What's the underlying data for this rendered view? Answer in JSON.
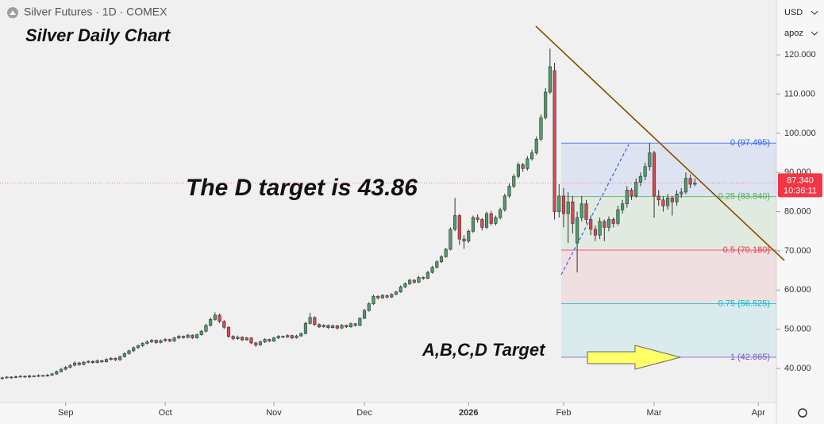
{
  "ui": {
    "symbol": "Silver Futures · 1D · COMEX",
    "currency": "USD",
    "scale_mode": "apoz"
  },
  "chart_data": {
    "type": "candlestick",
    "title": "Silver Daily Chart",
    "annotations": [
      "The D target is 43.86",
      "A,B,C,D  Target"
    ],
    "up_color": "#4f9d69",
    "down_color": "#e0454f",
    "wick_color": "#333333",
    "xlim": [
      -0.5,
      171
    ],
    "xticks": [
      {
        "value": 14,
        "label": "Sep"
      },
      {
        "value": 36,
        "label": "Oct"
      },
      {
        "value": 60,
        "label": "Nov"
      },
      {
        "value": 80,
        "label": "Dec"
      },
      {
        "value": 103,
        "label": "2026"
      },
      {
        "value": 124,
        "label": "Feb"
      },
      {
        "value": 144,
        "label": "Mar"
      },
      {
        "value": 167,
        "label": "Apr"
      }
    ],
    "ylim": [
      31.3,
      134
    ],
    "yticks": [
      {
        "value": 40,
        "label": "40.000"
      },
      {
        "value": 50,
        "label": "50.000"
      },
      {
        "value": 60,
        "label": "60.000"
      },
      {
        "value": 70,
        "label": "70.000"
      },
      {
        "value": 80,
        "label": "80.000"
      },
      {
        "value": 90,
        "label": "90.000"
      },
      {
        "value": 100,
        "label": "100.000"
      },
      {
        "value": 110,
        "label": "110.000"
      },
      {
        "value": 120,
        "label": "120.000"
      }
    ],
    "last_price": {
      "value": 87.34,
      "label": "87.340",
      "countdown": "10:36:11",
      "color": "#f23645"
    },
    "fib_levels": [
      {
        "value": 97.495,
        "label": "0 (97.495)",
        "color": "#2962ff"
      },
      {
        "value": 83.84,
        "label": "0.25 (83.840)",
        "color": "#4caf50"
      },
      {
        "value": 70.18,
        "label": "0.5 (70.180)",
        "color": "#f23645"
      },
      {
        "value": 56.525,
        "label": "0.75 (56.525)",
        "color": "#00bcd4"
      },
      {
        "value": 42.865,
        "label": "1 (42.865)",
        "color": "#7e57c2"
      }
    ],
    "ohlc": [
      [
        37.4,
        37.9,
        37.2,
        37.6
      ],
      [
        37.6,
        38.0,
        37.4,
        37.8
      ],
      [
        37.8,
        38.0,
        37.4,
        37.7
      ],
      [
        37.7,
        38.2,
        37.5,
        37.9
      ],
      [
        37.9,
        38.3,
        37.7,
        38.0
      ],
      [
        38.0,
        38.2,
        37.6,
        37.8
      ],
      [
        37.8,
        38.4,
        37.6,
        38.1
      ],
      [
        38.1,
        38.3,
        37.8,
        38.0
      ],
      [
        38.0,
        38.5,
        37.8,
        38.2
      ],
      [
        38.2,
        38.4,
        37.9,
        38.1
      ],
      [
        38.1,
        38.6,
        37.9,
        38.3
      ],
      [
        38.3,
        38.9,
        38.1,
        38.6
      ],
      [
        38.6,
        39.5,
        38.4,
        39.2
      ],
      [
        39.2,
        40.1,
        39.0,
        39.8
      ],
      [
        39.8,
        40.6,
        39.5,
        40.3
      ],
      [
        40.3,
        41.1,
        40.0,
        40.8
      ],
      [
        40.8,
        41.8,
        40.6,
        41.4
      ],
      [
        41.4,
        41.7,
        40.7,
        41.0
      ],
      [
        41.0,
        41.9,
        40.8,
        41.6
      ],
      [
        41.6,
        42.1,
        41.3,
        41.8
      ],
      [
        41.8,
        42.1,
        41.2,
        41.5
      ],
      [
        41.5,
        42.3,
        41.3,
        42.0
      ],
      [
        42.0,
        42.2,
        41.4,
        41.7
      ],
      [
        41.7,
        42.6,
        41.5,
        42.3
      ],
      [
        42.3,
        42.9,
        42.0,
        42.6
      ],
      [
        42.6,
        42.8,
        41.9,
        42.2
      ],
      [
        42.2,
        43.3,
        42.0,
        43.0
      ],
      [
        43.0,
        44.1,
        42.8,
        43.8
      ],
      [
        43.8,
        44.8,
        43.5,
        44.5
      ],
      [
        44.5,
        45.6,
        44.2,
        45.3
      ],
      [
        45.3,
        46.1,
        45.0,
        45.8
      ],
      [
        45.8,
        46.7,
        45.5,
        46.4
      ],
      [
        46.4,
        47.1,
        46.1,
        46.8
      ],
      [
        46.8,
        47.5,
        46.5,
        47.2
      ],
      [
        47.2,
        47.4,
        46.3,
        46.6
      ],
      [
        46.6,
        47.4,
        46.4,
        47.1
      ],
      [
        47.1,
        47.7,
        46.8,
        47.4
      ],
      [
        47.4,
        47.6,
        46.7,
        47.0
      ],
      [
        47.0,
        48.1,
        46.8,
        47.8
      ],
      [
        47.8,
        48.6,
        47.5,
        48.2
      ],
      [
        48.2,
        48.4,
        47.6,
        47.9
      ],
      [
        47.9,
        48.8,
        47.7,
        48.5
      ],
      [
        48.5,
        48.7,
        47.5,
        47.8
      ],
      [
        47.8,
        48.9,
        47.6,
        48.6
      ],
      [
        48.6,
        49.8,
        48.4,
        49.5
      ],
      [
        49.5,
        51.4,
        49.2,
        51.0
      ],
      [
        51.0,
        53.0,
        50.7,
        52.5
      ],
      [
        52.5,
        54.3,
        52.2,
        53.6
      ],
      [
        53.6,
        54.0,
        51.6,
        52.0
      ],
      [
        52.0,
        52.3,
        50.1,
        50.5
      ],
      [
        50.5,
        50.8,
        47.8,
        48.2
      ],
      [
        48.2,
        48.5,
        47.2,
        47.6
      ],
      [
        47.6,
        48.4,
        47.3,
        48.0
      ],
      [
        48.0,
        48.2,
        47.0,
        47.3
      ],
      [
        47.3,
        48.1,
        47.1,
        47.8
      ],
      [
        47.8,
        48.0,
        46.2,
        46.5
      ],
      [
        46.5,
        46.8,
        45.5,
        46.0
      ],
      [
        46.0,
        47.1,
        45.8,
        46.8
      ],
      [
        46.8,
        47.7,
        46.5,
        47.4
      ],
      [
        47.4,
        47.6,
        46.7,
        47.0
      ],
      [
        47.0,
        48.1,
        46.8,
        47.8
      ],
      [
        47.8,
        48.5,
        47.5,
        48.2
      ],
      [
        48.2,
        48.4,
        47.7,
        48.0
      ],
      [
        48.0,
        48.7,
        47.8,
        48.4
      ],
      [
        48.4,
        48.6,
        47.5,
        47.8
      ],
      [
        47.8,
        48.6,
        47.6,
        48.3
      ],
      [
        48.3,
        49.2,
        48.1,
        48.9
      ],
      [
        48.9,
        51.9,
        48.7,
        51.5
      ],
      [
        51.5,
        54.2,
        51.2,
        53.0
      ],
      [
        53.0,
        53.3,
        50.9,
        51.2
      ],
      [
        51.2,
        51.5,
        50.3,
        50.6
      ],
      [
        50.6,
        51.3,
        50.4,
        51.0
      ],
      [
        51.0,
        51.2,
        50.1,
        50.4
      ],
      [
        50.4,
        51.2,
        50.2,
        50.9
      ],
      [
        50.9,
        51.1,
        49.9,
        50.3
      ],
      [
        50.3,
        51.3,
        50.1,
        51.0
      ],
      [
        51.0,
        51.2,
        50.3,
        50.6
      ],
      [
        50.6,
        51.7,
        50.4,
        51.4
      ],
      [
        51.4,
        51.6,
        50.7,
        51.0
      ],
      [
        51.0,
        53.1,
        50.8,
        52.8
      ],
      [
        52.8,
        55.2,
        52.6,
        54.8
      ],
      [
        54.8,
        56.9,
        54.5,
        56.5
      ],
      [
        56.5,
        58.8,
        56.2,
        58.4
      ],
      [
        58.4,
        58.7,
        57.6,
        58.0
      ],
      [
        58.0,
        59.0,
        57.8,
        58.6
      ],
      [
        58.6,
        58.9,
        57.8,
        58.2
      ],
      [
        58.2,
        59.2,
        58.0,
        58.9
      ],
      [
        58.9,
        59.8,
        58.7,
        59.5
      ],
      [
        59.5,
        61.2,
        59.3,
        60.8
      ],
      [
        60.8,
        62.0,
        60.5,
        61.6
      ],
      [
        61.6,
        62.9,
        61.3,
        62.5
      ],
      [
        62.5,
        62.8,
        61.6,
        62.0
      ],
      [
        62.0,
        63.6,
        61.8,
        63.2
      ],
      [
        63.2,
        63.5,
        62.6,
        63.0
      ],
      [
        63.0,
        64.9,
        62.8,
        64.5
      ],
      [
        64.5,
        66.2,
        64.2,
        65.8
      ],
      [
        65.8,
        67.6,
        65.5,
        67.2
      ],
      [
        67.2,
        68.9,
        66.9,
        68.5
      ],
      [
        68.5,
        70.8,
        68.2,
        70.4
      ],
      [
        70.4,
        76.0,
        70.1,
        75.5
      ],
      [
        75.5,
        83.5,
        75.0,
        79.0
      ],
      [
        79.0,
        79.4,
        71.5,
        73.0
      ],
      [
        73.0,
        74.0,
        70.5,
        72.5
      ],
      [
        72.5,
        75.5,
        72.0,
        75.0
      ],
      [
        75.0,
        79.0,
        74.6,
        78.5
      ],
      [
        78.5,
        79.3,
        77.2,
        78.0
      ],
      [
        78.0,
        78.4,
        75.2,
        76.0
      ],
      [
        76.0,
        80.0,
        75.6,
        79.5
      ],
      [
        79.5,
        80.2,
        76.5,
        77.0
      ],
      [
        77.0,
        79.0,
        76.5,
        78.5
      ],
      [
        78.5,
        81.0,
        78.0,
        80.5
      ],
      [
        80.5,
        84.6,
        80.0,
        84.0
      ],
      [
        84.0,
        87.2,
        83.5,
        86.5
      ],
      [
        86.5,
        89.6,
        86.0,
        89.0
      ],
      [
        89.0,
        92.6,
        88.5,
        92.0
      ],
      [
        92.0,
        92.5,
        90.2,
        91.0
      ],
      [
        91.0,
        94.2,
        90.5,
        93.5
      ],
      [
        93.5,
        95.8,
        93.0,
        95.0
      ],
      [
        95.0,
        99.2,
        94.5,
        98.5
      ],
      [
        98.5,
        104.8,
        98.0,
        104.0
      ],
      [
        104.0,
        111.5,
        103.5,
        110.5
      ],
      [
        110.5,
        121.6,
        110.0,
        117.0
      ],
      [
        116.0,
        118.0,
        78.0,
        80.0
      ],
      [
        80.0,
        87.0,
        78.5,
        84.0
      ],
      [
        84.0,
        86.0,
        76.0,
        79.5
      ],
      [
        79.5,
        85.0,
        72.0,
        82.5
      ],
      [
        82.5,
        84.0,
        74.5,
        77.0
      ],
      [
        72.0,
        80.0,
        64.5,
        78.5
      ],
      [
        78.5,
        84.0,
        77.5,
        82.0
      ],
      [
        82.0,
        83.0,
        77.0,
        78.0
      ],
      [
        78.0,
        79.0,
        74.0,
        75.5
      ],
      [
        75.5,
        76.5,
        72.5,
        74.0
      ],
      [
        74.0,
        78.5,
        73.0,
        77.5
      ],
      [
        77.5,
        78.0,
        72.5,
        76.0
      ],
      [
        76.0,
        78.8,
        75.0,
        78.0
      ],
      [
        78.0,
        78.5,
        76.0,
        77.0
      ],
      [
        77.0,
        81.5,
        76.5,
        80.5
      ],
      [
        80.5,
        83.0,
        79.5,
        82.0
      ],
      [
        82.0,
        86.5,
        81.0,
        85.5
      ],
      [
        85.5,
        86.0,
        83.0,
        84.0
      ],
      [
        84.0,
        88.5,
        83.5,
        87.5
      ],
      [
        87.5,
        90.0,
        86.5,
        89.0
      ],
      [
        89.0,
        92.5,
        88.0,
        91.5
      ],
      [
        91.5,
        97.5,
        90.5,
        95.0
      ],
      [
        95.0,
        95.5,
        78.5,
        84.0
      ],
      [
        84.0,
        85.5,
        81.5,
        83.0
      ],
      [
        83.0,
        84.0,
        80.0,
        81.5
      ],
      [
        81.5,
        84.5,
        80.5,
        83.5
      ],
      [
        83.5,
        84.0,
        79.0,
        82.5
      ],
      [
        82.5,
        85.5,
        81.5,
        84.5
      ],
      [
        84.5,
        86.0,
        83.5,
        85.0
      ],
      [
        85.0,
        90.0,
        84.5,
        88.5
      ],
      [
        88.5,
        89.5,
        86.0,
        87.0
      ],
      [
        87.0,
        88.5,
        86.5,
        87.34
      ]
    ]
  }
}
